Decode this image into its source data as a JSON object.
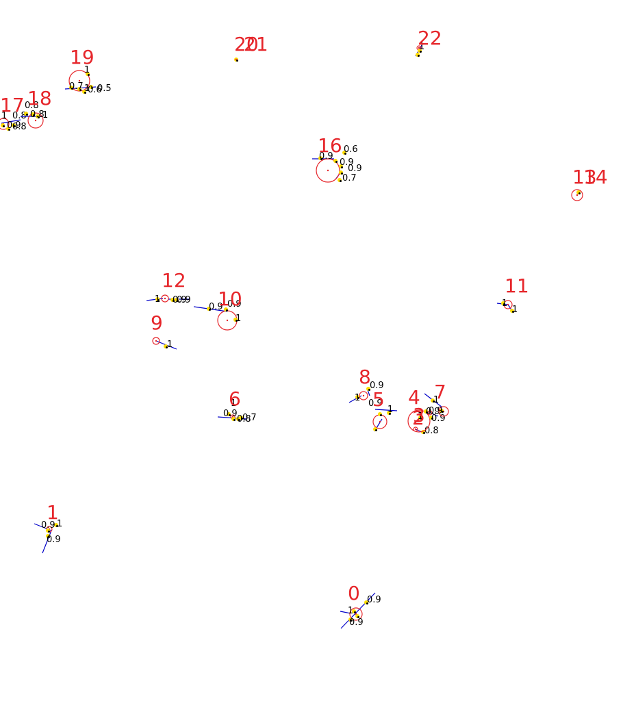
{
  "colors": {
    "background": "#ffffff",
    "node_label": "#e6262b",
    "ring": "#e6262b",
    "edge": "#0000c8",
    "marker": "#ffdd00",
    "score_text": "#000000"
  },
  "nodes": [
    {
      "id": "0",
      "label": "0",
      "scores": [
        "0.9",
        "1",
        "0.9"
      ]
    },
    {
      "id": "1",
      "label": "1",
      "scores": [
        "1",
        "0.9",
        "0.9"
      ]
    },
    {
      "id": "2",
      "label": "2",
      "scores": [
        "0.8"
      ]
    },
    {
      "id": "3",
      "label": "3",
      "scores": [
        "1"
      ]
    },
    {
      "id": "4",
      "label": "4",
      "scores": [
        "0.9",
        "0.9"
      ]
    },
    {
      "id": "5",
      "label": "5",
      "scores": [
        "0.9",
        "1"
      ]
    },
    {
      "id": "6",
      "label": "6",
      "scores": [
        "1",
        "0.9",
        "0.8",
        "0.7"
      ]
    },
    {
      "id": "7",
      "label": "7",
      "scores": [
        "1",
        "0.9"
      ]
    },
    {
      "id": "8",
      "label": "8",
      "scores": [
        "0.9",
        "1"
      ]
    },
    {
      "id": "9",
      "label": "9",
      "scores": [
        "1"
      ]
    },
    {
      "id": "10",
      "label": "10",
      "scores": [
        "0.9",
        "0.9",
        "1"
      ]
    },
    {
      "id": "11",
      "label": "11",
      "scores": [
        "1",
        "1"
      ]
    },
    {
      "id": "12",
      "label": "12",
      "scores": [
        "1",
        "0.9",
        "0.9"
      ]
    },
    {
      "id": "13",
      "label": "13",
      "scores": []
    },
    {
      "id": "14",
      "label": "14",
      "scores": []
    },
    {
      "id": "16",
      "label": "16",
      "scores": [
        "0.9",
        "0.6",
        "0.9",
        "0.9",
        "0.7"
      ]
    },
    {
      "id": "17",
      "label": "17",
      "scores": [
        "1",
        "0.8",
        "0.9",
        "0.8"
      ]
    },
    {
      "id": "18",
      "label": "18",
      "scores": [
        "0.8",
        "0.8",
        "1"
      ]
    },
    {
      "id": "19",
      "label": "19",
      "scores": [
        "1",
        "0.7",
        "1",
        "0.6",
        "0.5"
      ]
    },
    {
      "id": "20",
      "label": "20",
      "scores": []
    },
    {
      "id": "21",
      "label": "21",
      "scores": []
    },
    {
      "id": "22",
      "label": "22",
      "scores": [
        "1"
      ]
    }
  ]
}
